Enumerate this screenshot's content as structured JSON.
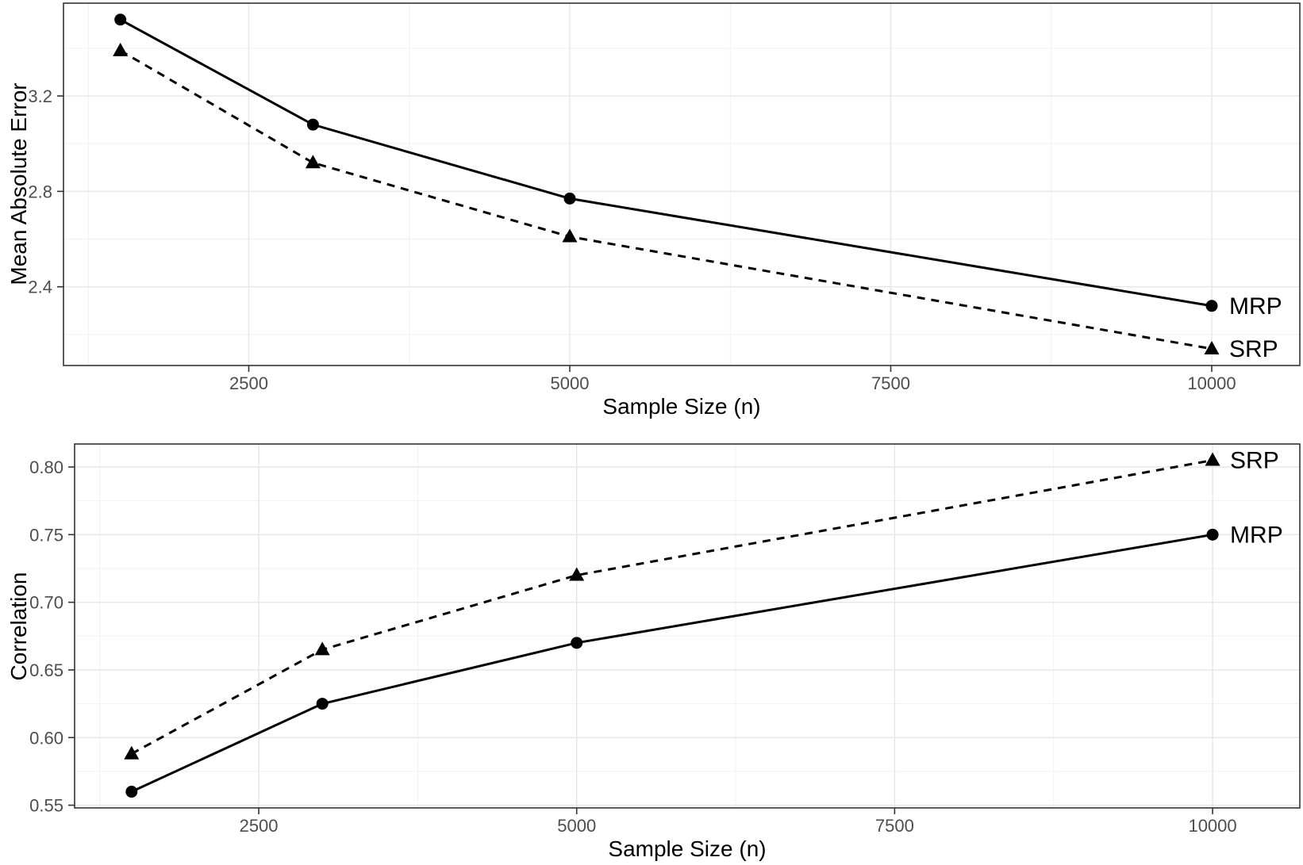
{
  "figure": {
    "background": "#ffffff",
    "panel_border_color": "#333333",
    "major_grid_color": "#e6e6e6",
    "minor_grid_color": "#f1f1f1",
    "tick_color": "#333333",
    "tick_label_color": "#4d4d4d",
    "series_color": "#000000"
  },
  "chart_data": [
    {
      "type": "line",
      "title": "",
      "xlabel": "Sample Size (n)",
      "ylabel": "Mean Absolute Error",
      "x": [
        1500,
        3000,
        5000,
        10000
      ],
      "series": [
        {
          "name": "MRP",
          "values": [
            3.52,
            3.08,
            2.77,
            2.32
          ],
          "line": "solid",
          "marker": "circle"
        },
        {
          "name": "SRP",
          "values": [
            3.39,
            2.92,
            2.61,
            2.14
          ],
          "line": "dashed",
          "marker": "triangle"
        }
      ],
      "xticks": {
        "values": [
          2500,
          5000,
          7500,
          10000
        ],
        "labels": [
          "2500",
          "5000",
          "7500",
          "10000"
        ]
      },
      "yticks": {
        "values": [
          2.4,
          2.8,
          3.2
        ],
        "labels": [
          "2.4",
          "2.8",
          "3.2"
        ]
      },
      "xlim": [
        1057,
        10686
      ],
      "ylim": [
        2.07,
        3.589
      ],
      "grid": {
        "major": true,
        "minor": true
      },
      "legend": "labels-at-line-end-right"
    },
    {
      "type": "line",
      "title": "",
      "xlabel": "Sample Size (n)",
      "ylabel": "Correlation",
      "x": [
        1500,
        3000,
        5000,
        10000
      ],
      "series": [
        {
          "name": "MRP",
          "values": [
            0.56,
            0.625,
            0.67,
            0.75
          ],
          "line": "solid",
          "marker": "circle"
        },
        {
          "name": "SRP",
          "values": [
            0.588,
            0.665,
            0.72,
            0.805
          ],
          "line": "dashed",
          "marker": "triangle"
        }
      ],
      "xticks": {
        "values": [
          2500,
          5000,
          7500,
          10000
        ],
        "labels": [
          "2500",
          "5000",
          "7500",
          "10000"
        ]
      },
      "yticks": {
        "values": [
          0.55,
          0.6,
          0.65,
          0.7,
          0.75,
          0.8
        ],
        "labels": [
          "0.55",
          "0.60",
          "0.65",
          "0.70",
          "0.75",
          "0.80"
        ]
      },
      "xlim": [
        1052,
        10686
      ],
      "ylim": [
        0.548,
        0.817
      ],
      "grid": {
        "major": true,
        "minor": true
      },
      "legend": "labels-at-line-end-right"
    }
  ]
}
